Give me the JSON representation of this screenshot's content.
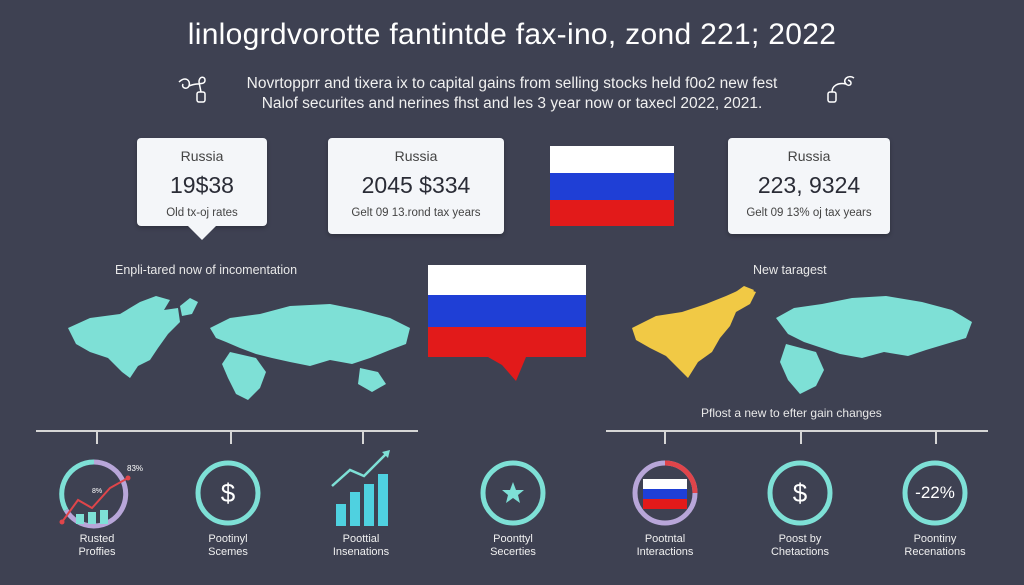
{
  "header": {
    "title": "linlogrdvorotte fantintde fax-ino, zond 221; 2022",
    "subtitle_line1": "Novrtopprr and tixera ix to capital gains from selling stocks held f0o2 new fest",
    "subtitle_line2": "Nalof securites and nerines fhst and les 3 year now or taxecl 2022, 2021."
  },
  "cards": [
    {
      "label": "Russia",
      "value": "19$38",
      "note": "Old tx-oj rates"
    },
    {
      "label": "Russia",
      "value": "2045 $334",
      "note": "Gelt 09 13.rond tax years"
    },
    {
      "label": "Russia",
      "value": "223, 9324",
      "note": "Gelt 09 13% oj tax years"
    }
  ],
  "sections": {
    "left_label": "Enpli-tared now of incomentation",
    "right_label": "New taragest",
    "right_sub_label": "Pflost a new to efter gain changes"
  },
  "bottom_items": [
    {
      "label_line1": "Rusted",
      "label_line2": "Proffies",
      "icon": "bar-chart-icon",
      "small_text_1": "83%",
      "small_text_2": "8%"
    },
    {
      "label_line1": "Pootinyl",
      "label_line2": "Scemes",
      "icon": "dollar-icon"
    },
    {
      "label_line1": "Poottial",
      "label_line2": "Insenations",
      "icon": "trend-up-icon"
    },
    {
      "label_line1": "Poonttyl",
      "label_line2": "Secerties",
      "icon": "star-icon"
    },
    {
      "label_line1": "Pootntal",
      "label_line2": "Interactions",
      "icon": "flag-icon"
    },
    {
      "label_line1": "Poost by",
      "label_line2": "Chetactions",
      "icon": "dollar-icon"
    },
    {
      "label_line1": "Poontiny",
      "label_line2": "Recenations",
      "icon": "percent-icon",
      "value": "-22%"
    }
  ],
  "colors": {
    "background": "#3e4152",
    "teal": "#7ee0d6",
    "yellow": "#f1c945",
    "flag_white": "#ffffff",
    "flag_blue": "#1f3fd6",
    "flag_red": "#e21a1a",
    "ring_purple": "#b8a6d9",
    "accent_red": "#e0454a"
  }
}
